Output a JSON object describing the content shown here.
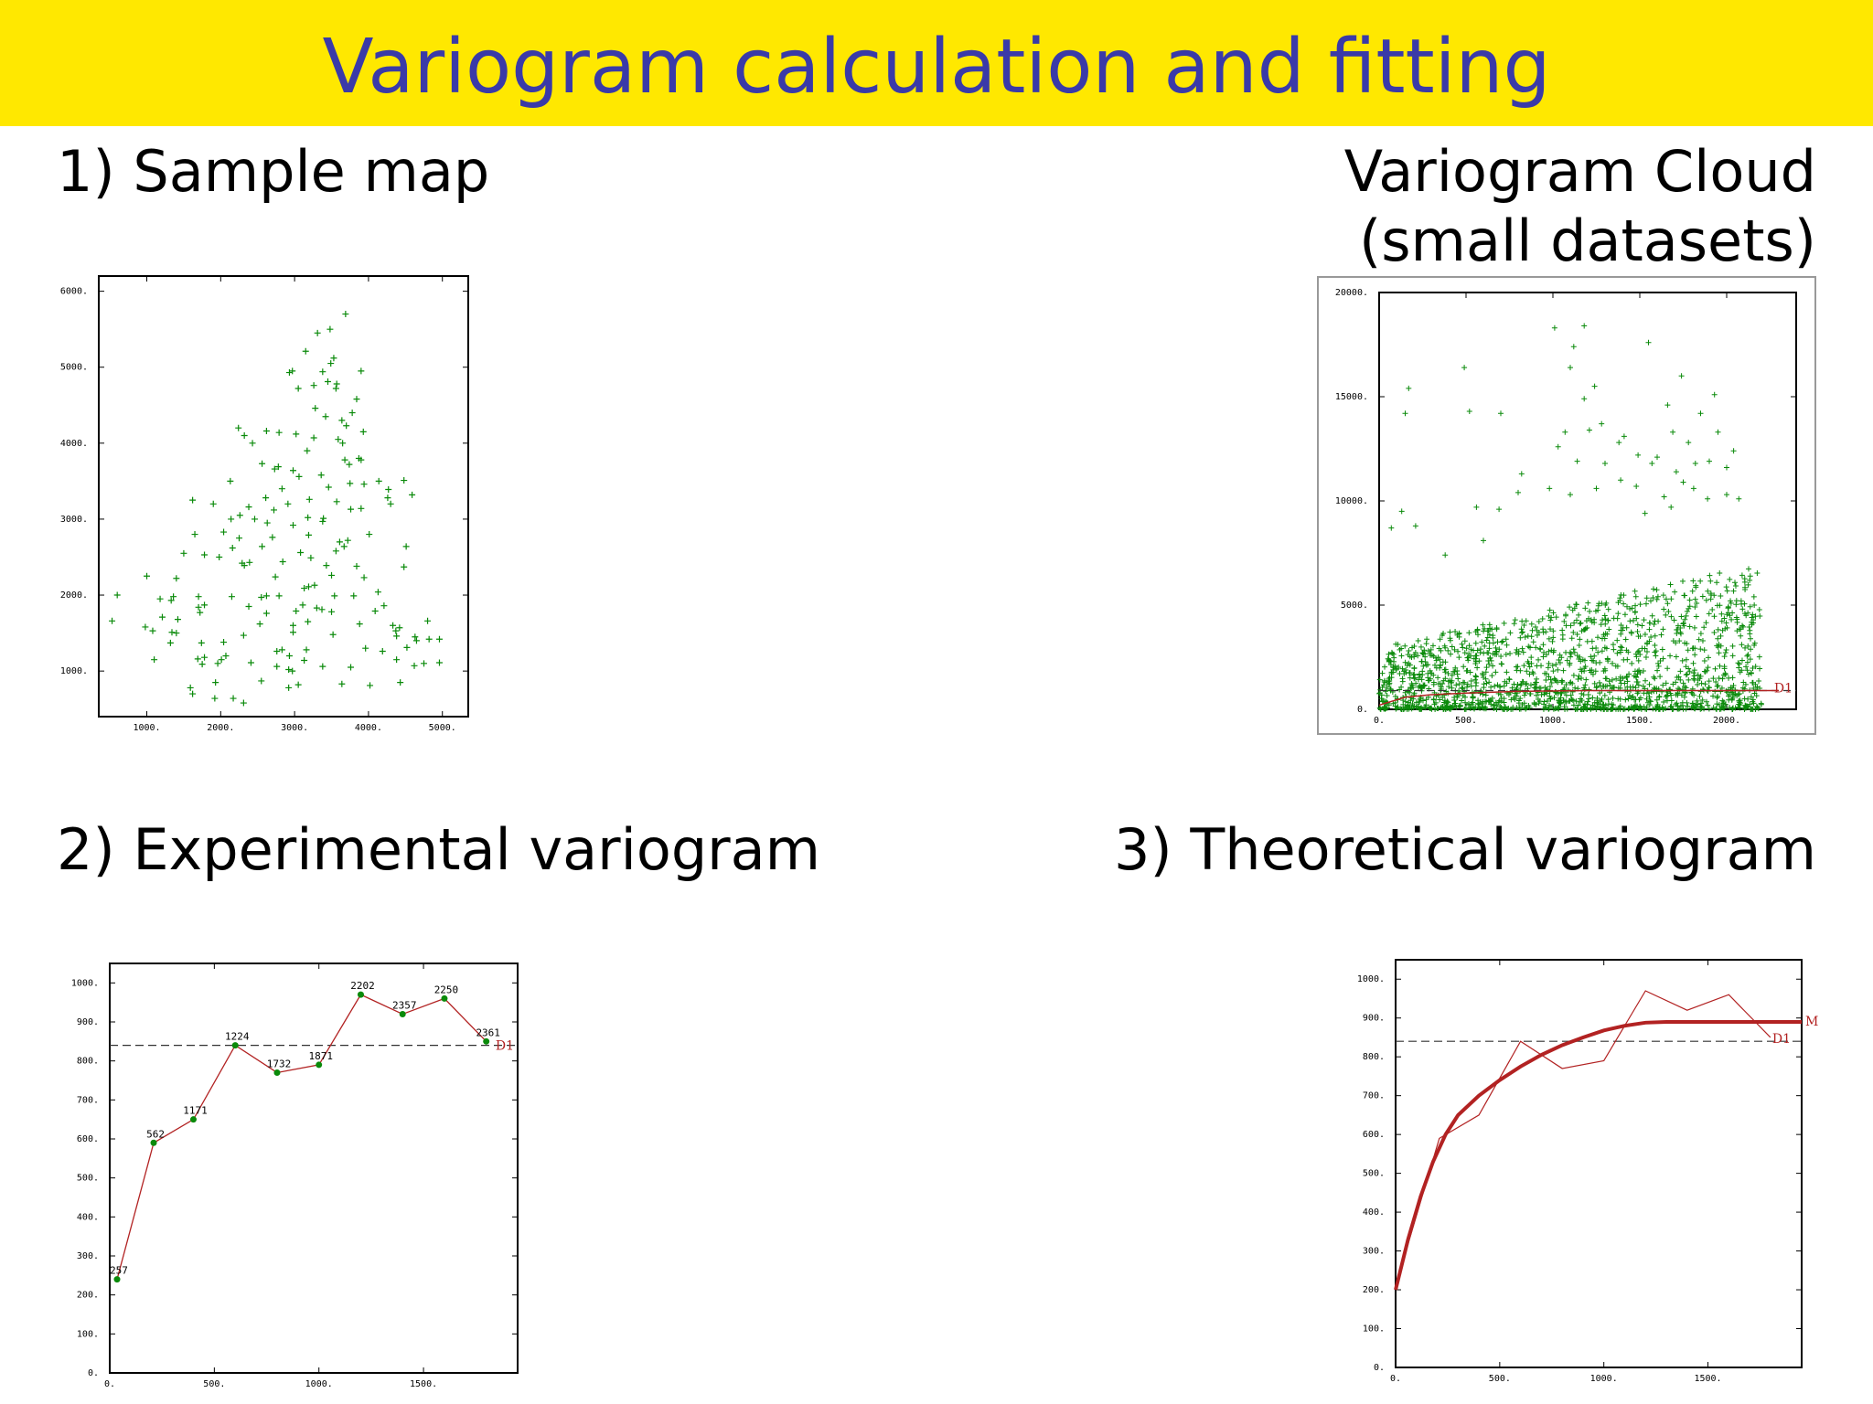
{
  "slide": {
    "title": "Variogram calculation and fitting",
    "headings": {
      "sample_map": "1) Sample map",
      "cloud_line1": "Variogram Cloud",
      "cloud_line2": "(small datasets)",
      "experimental": "2) Experimental variogram",
      "theoretical": "3) Theoretical variogram"
    },
    "colors": {
      "title_bar": "#ffe800",
      "title_text": "#3a3aa8",
      "points": "#0a8a0a",
      "line": "#b22222"
    }
  },
  "chart_data": [
    {
      "id": "sample_map",
      "type": "scatter",
      "title": "",
      "xlim": [
        350,
        5350
      ],
      "ylim": [
        400,
        6200
      ],
      "xticks": [
        1000,
        2000,
        3000,
        4000,
        5000
      ],
      "yticks": [
        1000,
        2000,
        3000,
        4000,
        5000,
        6000
      ],
      "xtick_labels": [
        "1000.",
        "2000.",
        "3000.",
        "4000.",
        "5000."
      ],
      "ytick_labels": [
        "1000.",
        "2000.",
        "3000.",
        "4000.",
        "5000.",
        "6000."
      ],
      "marker": "+",
      "points": [
        [
          3690,
          5700
        ],
        [
          3310,
          5450
        ],
        [
          3480,
          5500
        ],
        [
          3530,
          5120
        ],
        [
          3490,
          5050
        ],
        [
          3150,
          5210
        ],
        [
          2930,
          4930
        ],
        [
          2970,
          4950
        ],
        [
          3900,
          4950
        ],
        [
          3380,
          4940
        ],
        [
          3450,
          4810
        ],
        [
          3260,
          4760
        ],
        [
          3560,
          4720
        ],
        [
          3570,
          4780
        ],
        [
          3050,
          4720
        ],
        [
          3840,
          4580
        ],
        [
          3280,
          4460
        ],
        [
          3780,
          4400
        ],
        [
          3420,
          4350
        ],
        [
          3640,
          4300
        ],
        [
          3700,
          4230
        ],
        [
          3930,
          4150
        ],
        [
          2240,
          4200
        ],
        [
          2320,
          4100
        ],
        [
          2620,
          4160
        ],
        [
          2790,
          4140
        ],
        [
          2430,
          4000
        ],
        [
          3020,
          4120
        ],
        [
          3590,
          4050
        ],
        [
          3650,
          4000
        ],
        [
          3260,
          4070
        ],
        [
          3870,
          3800
        ],
        [
          3900,
          3780
        ],
        [
          3680,
          3780
        ],
        [
          3740,
          3720
        ],
        [
          3170,
          3900
        ],
        [
          2560,
          3730
        ],
        [
          2730,
          3660
        ],
        [
          2780,
          3690
        ],
        [
          2980,
          3640
        ],
        [
          3360,
          3580
        ],
        [
          3750,
          3470
        ],
        [
          4140,
          3500
        ],
        [
          4270,
          3390
        ],
        [
          4480,
          3510
        ],
        [
          4590,
          3320
        ],
        [
          4260,
          3280
        ],
        [
          4300,
          3200
        ],
        [
          3460,
          3420
        ],
        [
          3940,
          3460
        ],
        [
          2130,
          3500
        ],
        [
          2830,
          3400
        ],
        [
          3060,
          3560
        ],
        [
          3200,
          3260
        ],
        [
          2610,
          3280
        ],
        [
          2910,
          3200
        ],
        [
          1620,
          3250
        ],
        [
          1900,
          3200
        ],
        [
          2380,
          3160
        ],
        [
          2720,
          3120
        ],
        [
          3570,
          3230
        ],
        [
          3900,
          3140
        ],
        [
          2260,
          3050
        ],
        [
          2140,
          3000
        ],
        [
          2460,
          3000
        ],
        [
          3390,
          3010
        ],
        [
          3380,
          2970
        ],
        [
          3760,
          3130
        ],
        [
          3180,
          3020
        ],
        [
          2630,
          2950
        ],
        [
          2980,
          2920
        ],
        [
          1650,
          2800
        ],
        [
          2040,
          2830
        ],
        [
          2250,
          2750
        ],
        [
          2700,
          2760
        ],
        [
          3190,
          2790
        ],
        [
          3610,
          2700
        ],
        [
          3670,
          2640
        ],
        [
          3720,
          2720
        ],
        [
          4010,
          2800
        ],
        [
          4510,
          2640
        ],
        [
          2560,
          2640
        ],
        [
          2160,
          2620
        ],
        [
          3560,
          2580
        ],
        [
          3080,
          2560
        ],
        [
          1500,
          2550
        ],
        [
          1780,
          2530
        ],
        [
          1980,
          2500
        ],
        [
          2320,
          2390
        ],
        [
          2390,
          2430
        ],
        [
          2290,
          2420
        ],
        [
          2840,
          2440
        ],
        [
          3220,
          2490
        ],
        [
          3430,
          2390
        ],
        [
          3840,
          2380
        ],
        [
          4480,
          2370
        ],
        [
          1000,
          2250
        ],
        [
          1400,
          2220
        ],
        [
          2740,
          2240
        ],
        [
          3500,
          2260
        ],
        [
          3940,
          2230
        ],
        [
          3270,
          2130
        ],
        [
          3130,
          2090
        ],
        [
          3190,
          2110
        ],
        [
          4130,
          2040
        ],
        [
          600,
          2000
        ],
        [
          1180,
          1950
        ],
        [
          1360,
          1980
        ],
        [
          1330,
          1930
        ],
        [
          1700,
          1980
        ],
        [
          1780,
          1870
        ],
        [
          2150,
          1980
        ],
        [
          2550,
          1970
        ],
        [
          2620,
          1990
        ],
        [
          2790,
          1990
        ],
        [
          3540,
          1990
        ],
        [
          3800,
          1990
        ],
        [
          3110,
          1870
        ],
        [
          1700,
          1840
        ],
        [
          1720,
          1770
        ],
        [
          2380,
          1850
        ],
        [
          2620,
          1760
        ],
        [
          3020,
          1790
        ],
        [
          3300,
          1830
        ],
        [
          3370,
          1810
        ],
        [
          3500,
          1780
        ],
        [
          4090,
          1790
        ],
        [
          4210,
          1860
        ],
        [
          1210,
          1710
        ],
        [
          1420,
          1680
        ],
        [
          2530,
          1620
        ],
        [
          2980,
          1600
        ],
        [
          3180,
          1650
        ],
        [
          3880,
          1620
        ],
        [
          4330,
          1600
        ],
        [
          4800,
          1660
        ],
        [
          4420,
          1570
        ],
        [
          530,
          1660
        ],
        [
          980,
          1580
        ],
        [
          1080,
          1530
        ],
        [
          1340,
          1510
        ],
        [
          1400,
          1500
        ],
        [
          2310,
          1470
        ],
        [
          2980,
          1510
        ],
        [
          3520,
          1480
        ],
        [
          4370,
          1530
        ],
        [
          4380,
          1460
        ],
        [
          4630,
          1450
        ],
        [
          4650,
          1400
        ],
        [
          4820,
          1420
        ],
        [
          4960,
          1420
        ],
        [
          1320,
          1370
        ],
        [
          1740,
          1370
        ],
        [
          2040,
          1380
        ],
        [
          2760,
          1260
        ],
        [
          2830,
          1280
        ],
        [
          2930,
          1200
        ],
        [
          3160,
          1280
        ],
        [
          3960,
          1300
        ],
        [
          4190,
          1260
        ],
        [
          4520,
          1310
        ],
        [
          1100,
          1150
        ],
        [
          1690,
          1160
        ],
        [
          1780,
          1180
        ],
        [
          2010,
          1150
        ],
        [
          2070,
          1200
        ],
        [
          3130,
          1140
        ],
        [
          4380,
          1150
        ],
        [
          4960,
          1110
        ],
        [
          1750,
          1090
        ],
        [
          1960,
          1100
        ],
        [
          2410,
          1110
        ],
        [
          2760,
          1060
        ],
        [
          3380,
          1060
        ],
        [
          2920,
          1020
        ],
        [
          2970,
          1000
        ],
        [
          3760,
          1050
        ],
        [
          4620,
          1070
        ],
        [
          4750,
          1100
        ],
        [
          2550,
          870
        ],
        [
          2920,
          780
        ],
        [
          3050,
          820
        ],
        [
          3640,
          830
        ],
        [
          4020,
          810
        ],
        [
          4430,
          850
        ],
        [
          1590,
          780
        ],
        [
          1620,
          700
        ],
        [
          1920,
          640
        ],
        [
          2170,
          640
        ],
        [
          2310,
          580
        ],
        [
          1930,
          850
        ]
      ]
    },
    {
      "id": "variogram_cloud",
      "type": "scatter",
      "title": "",
      "xlim": [
        0,
        2400
      ],
      "ylim": [
        0,
        20000
      ],
      "xticks": [
        0,
        500,
        1000,
        1500,
        2000
      ],
      "yticks": [
        0,
        5000,
        10000,
        15000,
        20000
      ],
      "xtick_labels": [
        "0.",
        "500.",
        "1000.",
        "1500.",
        "2000."
      ],
      "ytick_labels": [
        "0.",
        "5000.",
        "10000.",
        "15000.",
        "20000."
      ],
      "marker": "+",
      "x_max_data": 2200,
      "reference_line": {
        "value": 900,
        "label": "D1"
      },
      "model_curve": [
        [
          0,
          200
        ],
        [
          150,
          580
        ],
        [
          300,
          700
        ],
        [
          500,
          780
        ],
        [
          800,
          860
        ],
        [
          1200,
          900
        ],
        [
          2300,
          900
        ]
      ],
      "outliers": [
        [
          1010,
          18300
        ],
        [
          1180,
          18400
        ],
        [
          1120,
          17400
        ],
        [
          1550,
          17600
        ],
        [
          1740,
          16000
        ],
        [
          1930,
          15100
        ],
        [
          1660,
          14600
        ],
        [
          1850,
          14200
        ],
        [
          1950,
          13300
        ],
        [
          1690,
          13300
        ],
        [
          1780,
          12800
        ],
        [
          1820,
          11800
        ],
        [
          1900,
          11900
        ],
        [
          2000,
          11600
        ],
        [
          2040,
          12400
        ],
        [
          1490,
          12200
        ],
        [
          1380,
          12800
        ],
        [
          1280,
          13700
        ],
        [
          1180,
          14900
        ],
        [
          1240,
          15500
        ],
        [
          1100,
          16400
        ],
        [
          490,
          16400
        ],
        [
          700,
          14200
        ],
        [
          520,
          14300
        ],
        [
          170,
          15400
        ],
        [
          150,
          14200
        ],
        [
          820,
          11300
        ],
        [
          1030,
          12600
        ],
        [
          1070,
          13300
        ],
        [
          1140,
          11900
        ],
        [
          1210,
          13400
        ],
        [
          1300,
          11800
        ],
        [
          1410,
          13100
        ],
        [
          1480,
          10700
        ],
        [
          1570,
          11800
        ],
        [
          1600,
          12100
        ],
        [
          1710,
          11400
        ],
        [
          1750,
          10900
        ],
        [
          1810,
          10600
        ],
        [
          2000,
          10300
        ],
        [
          2070,
          10100
        ],
        [
          1890,
          10100
        ],
        [
          1680,
          9700
        ],
        [
          1530,
          9400
        ],
        [
          1640,
          10200
        ],
        [
          1390,
          11000
        ],
        [
          1250,
          10600
        ],
        [
          1100,
          10300
        ],
        [
          980,
          10600
        ],
        [
          800,
          10400
        ],
        [
          690,
          9600
        ],
        [
          560,
          9700
        ],
        [
          130,
          9500
        ],
        [
          70,
          8700
        ],
        [
          210,
          8800
        ],
        [
          380,
          7400
        ],
        [
          600,
          8100
        ]
      ],
      "dense_band": {
        "x_range": [
          0,
          2200
        ],
        "y_floor": 0,
        "y_top_left": 3000,
        "y_top_right": 7000,
        "count": 1600
      }
    },
    {
      "id": "experimental_variogram",
      "type": "line",
      "title": "",
      "xlim": [
        0,
        1950
      ],
      "ylim": [
        0,
        1050
      ],
      "xticks": [
        0,
        500,
        1000,
        1500
      ],
      "yticks": [
        0,
        100,
        200,
        300,
        400,
        500,
        600,
        700,
        800,
        900,
        1000
      ],
      "xtick_labels": [
        "0.",
        "500.",
        "1000.",
        "1500."
      ],
      "ytick_labels": [
        "0.",
        "100.",
        "200.",
        "300.",
        "400.",
        "500.",
        "600.",
        "700.",
        "800.",
        "900.",
        "1000."
      ],
      "x": [
        35,
        210,
        400,
        600,
        800,
        1000,
        1200,
        1400,
        1600,
        1800
      ],
      "y": [
        240,
        590,
        650,
        840,
        770,
        790,
        970,
        920,
        960,
        850
      ],
      "point_labels": [
        "257",
        "562",
        "1171",
        "1224",
        "1732",
        "1871",
        "2202",
        "2357",
        "2250",
        "2361"
      ],
      "reference_line": {
        "value": 840,
        "label": "D1"
      }
    },
    {
      "id": "theoretical_variogram",
      "type": "line",
      "title": "",
      "xlim": [
        0,
        1950
      ],
      "ylim": [
        0,
        1050
      ],
      "xticks": [
        0,
        500,
        1000,
        1500
      ],
      "yticks": [
        0,
        100,
        200,
        300,
        400,
        500,
        600,
        700,
        800,
        900,
        1000
      ],
      "xtick_labels": [
        "0.",
        "500.",
        "1000.",
        "1500."
      ],
      "ytick_labels": [
        "0.",
        "100.",
        "200.",
        "300.",
        "400.",
        "500.",
        "600.",
        "700.",
        "800.",
        "900.",
        "1000."
      ],
      "experimental": {
        "x": [
          0,
          210,
          400,
          600,
          800,
          1000,
          1200,
          1400,
          1600,
          1800
        ],
        "y": [
          210,
          590,
          650,
          840,
          770,
          790,
          970,
          920,
          960,
          850
        ]
      },
      "model": {
        "x": [
          0,
          60,
          120,
          180,
          240,
          300,
          400,
          500,
          600,
          700,
          800,
          900,
          1000,
          1100,
          1200,
          1300,
          1950
        ],
        "y": [
          200,
          330,
          440,
          530,
          600,
          650,
          700,
          740,
          775,
          805,
          830,
          850,
          868,
          880,
          888,
          890,
          890
        ],
        "label": "M"
      },
      "reference_line": {
        "value": 840,
        "label": "D1"
      }
    }
  ]
}
